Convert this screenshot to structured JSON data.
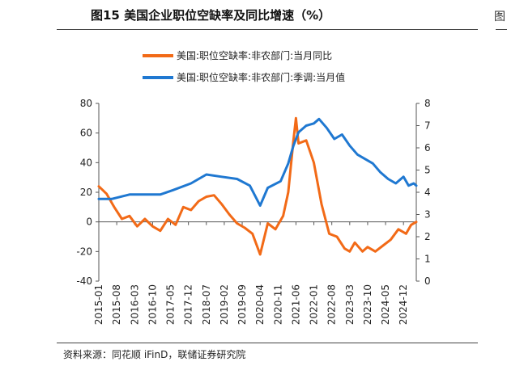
{
  "page": {
    "title": "图15 美国企业职位空缺率及同比增速（%）",
    "source": "资料来源：同花顺 iFinD，联储证券研究院"
  },
  "colors": {
    "yoy": "#f26a17",
    "rate": "#1f78d1"
  },
  "chart_data": {
    "type": "line",
    "title": "图15 美国企业职位空缺率及同比增速（%）",
    "legend_position": "top",
    "grid": false,
    "x_tick_labels": [
      "2015-01",
      "2015-08",
      "2016-03",
      "2016-10",
      "2017-05",
      "2017-12",
      "2018-07",
      "2019-02",
      "2019-09",
      "2020-04",
      "2020-11",
      "2021-06",
      "2022-01",
      "2022-08",
      "2023-03",
      "2023-10",
      "2024-05",
      "2024-12"
    ],
    "x_range": [
      "2015-01",
      "2025-05"
    ],
    "y_left": {
      "range": [
        -40,
        80
      ],
      "ticks": [
        -40,
        -20,
        0,
        20,
        40,
        60,
        80
      ],
      "series": "美国:职位空缺率:非农部门:当月同比"
    },
    "y_right": {
      "range": [
        0,
        8
      ],
      "ticks": [
        0,
        1,
        2,
        3,
        4,
        5,
        6,
        7,
        8
      ],
      "series": "美国:职位空缺率:非农部门:季调:当月值"
    },
    "series": [
      {
        "name": "美国:职位空缺率:非农部门:当月同比",
        "axis": "left",
        "points": [
          [
            "2015-01",
            24
          ],
          [
            "2015-04",
            19
          ],
          [
            "2015-07",
            10
          ],
          [
            "2015-10",
            2
          ],
          [
            "2016-01",
            4
          ],
          [
            "2016-04",
            -3
          ],
          [
            "2016-07",
            2
          ],
          [
            "2016-10",
            -3
          ],
          [
            "2017-01",
            -6
          ],
          [
            "2017-04",
            2
          ],
          [
            "2017-07",
            -2
          ],
          [
            "2017-10",
            10
          ],
          [
            "2018-01",
            8
          ],
          [
            "2018-04",
            14
          ],
          [
            "2018-07",
            17
          ],
          [
            "2018-10",
            18
          ],
          [
            "2019-01",
            12
          ],
          [
            "2019-04",
            5
          ],
          [
            "2019-07",
            -1
          ],
          [
            "2019-10",
            -4
          ],
          [
            "2020-01",
            -8
          ],
          [
            "2020-04",
            -22
          ],
          [
            "2020-07",
            -1
          ],
          [
            "2020-10",
            -5
          ],
          [
            "2021-01",
            4
          ],
          [
            "2021-03",
            20
          ],
          [
            "2021-05",
            55
          ],
          [
            "2021-06",
            70
          ],
          [
            "2021-07",
            53
          ],
          [
            "2021-10",
            55
          ],
          [
            "2022-01",
            40
          ],
          [
            "2022-04",
            12
          ],
          [
            "2022-07",
            -8
          ],
          [
            "2022-10",
            -10
          ],
          [
            "2023-01",
            -18
          ],
          [
            "2023-03",
            -20
          ],
          [
            "2023-05",
            -14
          ],
          [
            "2023-08",
            -20
          ],
          [
            "2023-10",
            -17
          ],
          [
            "2024-01",
            -20
          ],
          [
            "2024-04",
            -16
          ],
          [
            "2024-07",
            -12
          ],
          [
            "2024-10",
            -5
          ],
          [
            "2025-01",
            -8
          ],
          [
            "2025-03",
            -2
          ],
          [
            "2025-05",
            0
          ]
        ]
      },
      {
        "name": "美国:职位空缺率:非农部门:季调:当月值",
        "axis": "right",
        "points": [
          [
            "2015-01",
            3.7
          ],
          [
            "2015-06",
            3.7
          ],
          [
            "2016-01",
            3.9
          ],
          [
            "2016-06",
            3.9
          ],
          [
            "2017-01",
            3.9
          ],
          [
            "2017-06",
            4.1
          ],
          [
            "2018-01",
            4.4
          ],
          [
            "2018-07",
            4.8
          ],
          [
            "2019-01",
            4.7
          ],
          [
            "2019-07",
            4.6
          ],
          [
            "2019-12",
            4.3
          ],
          [
            "2020-04",
            3.4
          ],
          [
            "2020-07",
            4.2
          ],
          [
            "2020-12",
            4.5
          ],
          [
            "2021-03",
            5.3
          ],
          [
            "2021-05",
            6.1
          ],
          [
            "2021-07",
            6.7
          ],
          [
            "2021-10",
            7.0
          ],
          [
            "2022-01",
            7.1
          ],
          [
            "2022-03",
            7.3
          ],
          [
            "2022-06",
            6.9
          ],
          [
            "2022-09",
            6.4
          ],
          [
            "2022-12",
            6.6
          ],
          [
            "2023-03",
            6.1
          ],
          [
            "2023-06",
            5.7
          ],
          [
            "2023-09",
            5.5
          ],
          [
            "2023-12",
            5.3
          ],
          [
            "2024-03",
            4.9
          ],
          [
            "2024-06",
            4.6
          ],
          [
            "2024-09",
            4.4
          ],
          [
            "2024-12",
            4.7
          ],
          [
            "2025-02",
            4.3
          ],
          [
            "2025-04",
            4.4
          ],
          [
            "2025-05",
            4.3
          ]
        ]
      }
    ]
  }
}
